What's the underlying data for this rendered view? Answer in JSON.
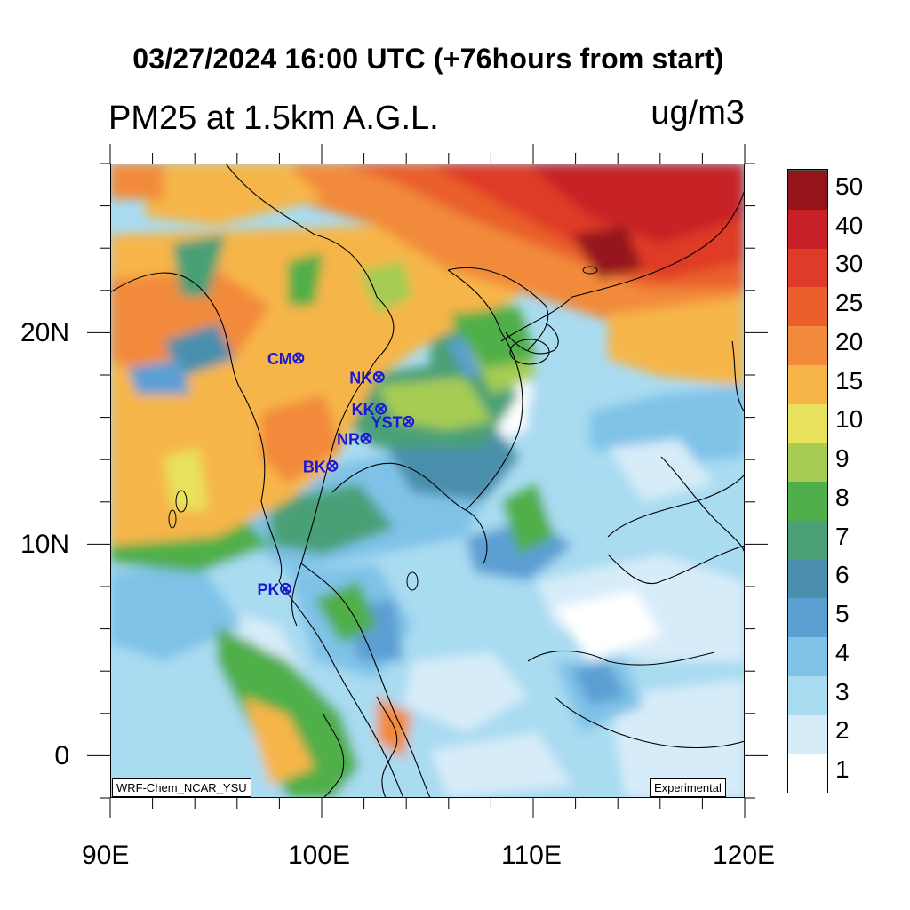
{
  "header": {
    "title": "03/27/2024 16:00 UTC (+76hours from start)",
    "variable": "PM25 at 1.5km A.G.L.",
    "units": "ug/m3"
  },
  "axes": {
    "x_ticks": [
      "90E",
      "100E",
      "110E",
      "120E"
    ],
    "y_ticks": [
      "20N",
      "10N",
      "0"
    ]
  },
  "stations": [
    {
      "code": "CM",
      "lon": 98.9,
      "lat": 18.8
    },
    {
      "code": "NK",
      "lon": 102.7,
      "lat": 17.9
    },
    {
      "code": "KK",
      "lon": 102.8,
      "lat": 16.4
    },
    {
      "code": "YST",
      "lon": 104.1,
      "lat": 15.8
    },
    {
      "code": "NR",
      "lon": 102.1,
      "lat": 15.0
    },
    {
      "code": "BK",
      "lon": 100.5,
      "lat": 13.7
    },
    {
      "code": "PK",
      "lon": 98.3,
      "lat": 7.9
    }
  ],
  "labels": {
    "model": "WRF-Chem_NCAR_YSU",
    "status": "Experimental"
  },
  "colorbar": {
    "levels": [
      "1",
      "2",
      "3",
      "4",
      "5",
      "6",
      "7",
      "8",
      "9",
      "10",
      "15",
      "20",
      "25",
      "30",
      "40",
      "50"
    ],
    "colors": [
      "#ffffff",
      "#d7ecf9",
      "#a9dbf1",
      "#7fc2e8",
      "#5b9fd3",
      "#4a8fab",
      "#4aa077",
      "#4faf4a",
      "#a6cc52",
      "#e8e25c",
      "#f6b549",
      "#f28a3b",
      "#ea5f2c",
      "#df3b28",
      "#c72027",
      "#95141a"
    ]
  },
  "colors": {
    "station_label": "#1a1ad6",
    "coastline": "#000000"
  }
}
